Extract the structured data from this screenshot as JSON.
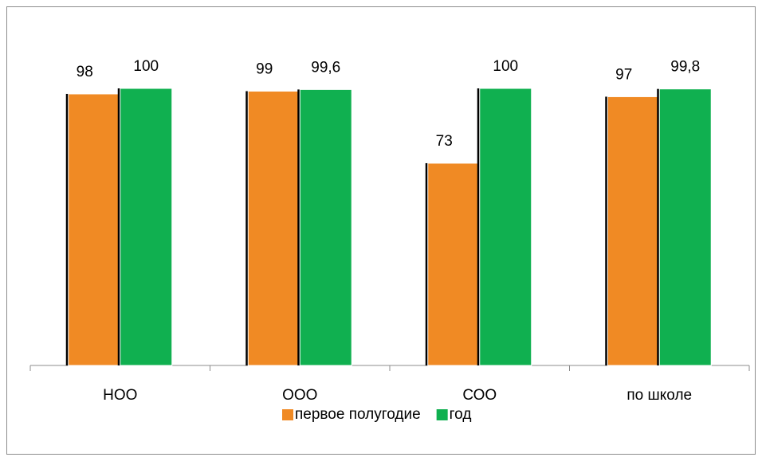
{
  "chart_data": {
    "type": "bar",
    "categories": [
      "НОО",
      "ООО",
      "СОО",
      "по школе"
    ],
    "series": [
      {
        "name": "первое полугодие",
        "color": "#f08a24",
        "values": [
          98,
          99,
          73,
          97
        ]
      },
      {
        "name": "год",
        "color": "#10b050",
        "values": [
          100,
          99.6,
          100,
          99.8
        ],
        "value_labels": [
          "100",
          "99,6",
          "100",
          "99,8"
        ]
      }
    ],
    "ylim": [
      0,
      100
    ],
    "legend": "bottom"
  }
}
